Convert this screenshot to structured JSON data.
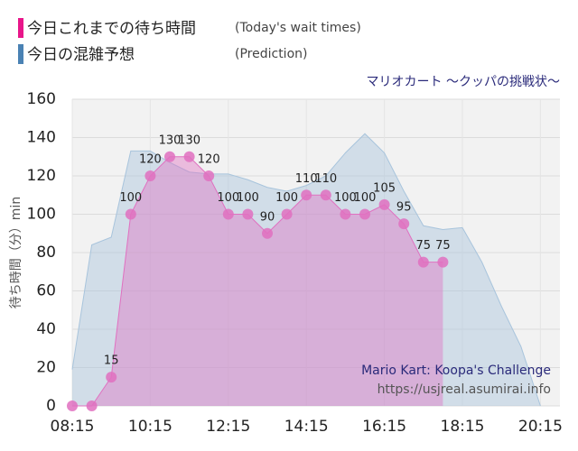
{
  "chart_data": {
    "type": "area",
    "subtitle": "マリオカート ～クッパの挑戦状～",
    "y_label": "待ち時間（分）min",
    "annotations": [
      "Mario Kart: Koopa's Challenge",
      "https://usjreal.asumirai.info"
    ],
    "xlim": [
      495,
      1245
    ],
    "xticks": [
      {
        "value": 495,
        "label": "08:15"
      },
      {
        "value": 615,
        "label": "10:15"
      },
      {
        "value": 735,
        "label": "12:15"
      },
      {
        "value": 855,
        "label": "14:15"
      },
      {
        "value": 975,
        "label": "16:15"
      },
      {
        "value": 1095,
        "label": "18:15"
      },
      {
        "value": 1215,
        "label": "20:15"
      }
    ],
    "ylim": [
      0,
      160
    ],
    "yticks": [
      0,
      20,
      40,
      60,
      80,
      100,
      120,
      140,
      160
    ],
    "grid": true,
    "series": [
      {
        "name": "今日これまでの待ち時間",
        "name_en": "(Today's wait times)",
        "color": "#e070c0",
        "x": [
          495,
          525,
          555,
          585,
          615,
          645,
          675,
          705,
          735,
          765,
          795,
          825,
          855,
          885,
          915,
          945,
          975,
          1005,
          1035,
          1065
        ],
        "values": [
          0,
          0,
          15,
          100,
          120,
          130,
          130,
          120,
          100,
          100,
          90,
          100,
          110,
          110,
          100,
          100,
          105,
          95,
          75,
          75
        ]
      },
      {
        "name": "今日の混雑予想",
        "name_en": "(Prediction)",
        "color": "#a8c4dc",
        "x": [
          495,
          525,
          555,
          585,
          615,
          645,
          675,
          705,
          735,
          765,
          795,
          825,
          855,
          885,
          915,
          945,
          975,
          1005,
          1035,
          1065,
          1095,
          1125,
          1155,
          1185,
          1215
        ],
        "values": [
          19,
          84,
          88,
          133,
          133,
          127,
          122,
          121,
          121,
          118,
          114,
          112,
          115,
          120,
          132,
          142,
          132,
          112,
          94,
          92,
          93,
          75,
          52,
          31,
          0
        ]
      }
    ]
  }
}
